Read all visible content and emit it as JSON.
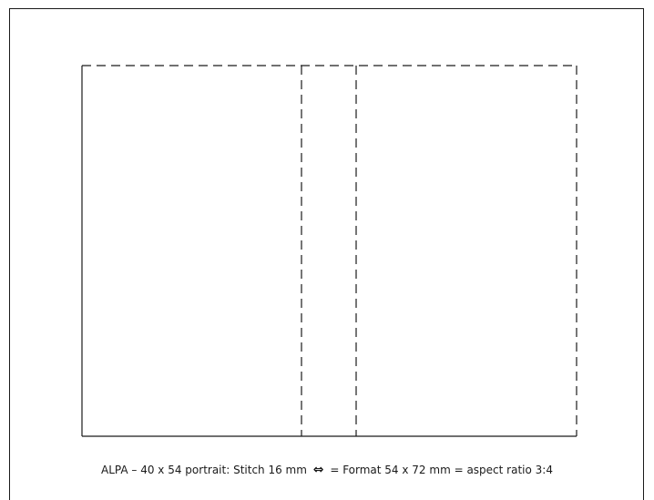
{
  "caption": {
    "prefix": "ALPA – 40 x 54 portrait: Stitch 16 mm",
    "arrow_symbol": "⇔",
    "suffix": "= Format 54 x 72 mm = aspect ratio 3:4"
  },
  "colors": {
    "stroke": "#1a1a1a",
    "background": "#ffffff"
  }
}
